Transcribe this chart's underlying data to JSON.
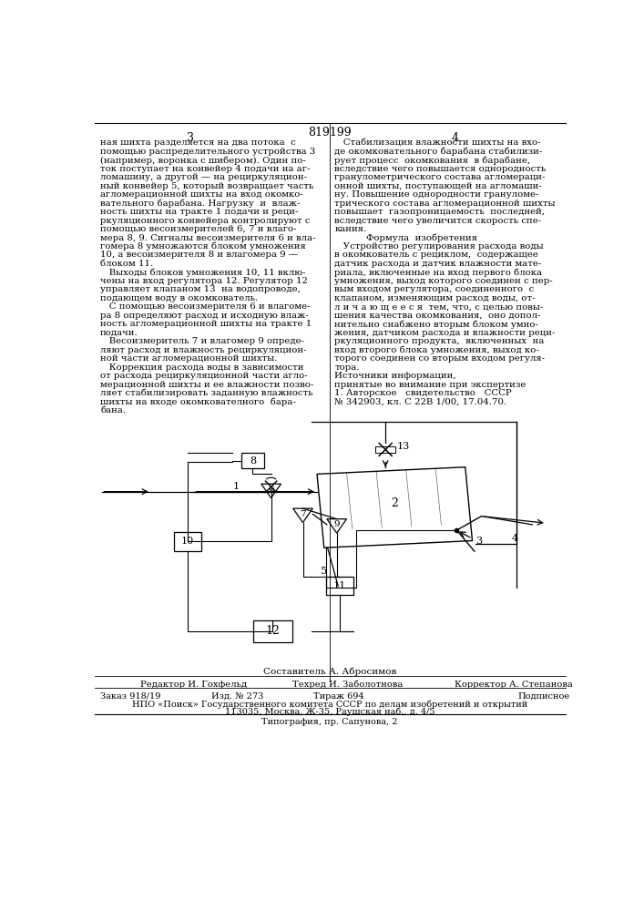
{
  "patent_number": "819199",
  "col1_text": [
    "ная шихта разделяется на два потока  с",
    "помощью распределительного устройства 3",
    "(например, воронка с шибером). Один по-",
    "ток поступает на конвейер 4 подачи на аг-",
    "ломашину, а другой — на рециркуляцион-",
    "ный конвейер 5, который возвращает часть",
    "агломерационной шихты на вход окомко-",
    "вательного барабана. Нагрузку  и  влаж-",
    "ность шихты на тракте 1 подачи и реци-",
    "ркуляционного конвейера контролируют с",
    "помощью весоизмерителей 6, 7 и влаго-",
    "мера 8, 9. Сигналы весоизмерителя 6 и вла-",
    "гомера 8 умножаются блоком умножения",
    "10, а весоизмерителя 8 и влагомера 9 —",
    "блоком 11.",
    "   Выходы блоков умножения 10, 11 вклю-",
    "чены на вход регулятора 12. Регулятор 12",
    "управляет клапаном 13  на водопроводе,",
    "подающем воду в окомкователь.",
    "   С помощью весоизмерителя 6 и влагоме-",
    "ра 8 определяют расход и исходную влаж-",
    "ность агломерационной шихты на тракте 1",
    "подачи.",
    "   Весоизмеритель 7 и влагомер 9 опреде-",
    "ляют расход и влажность рециркуляцион-",
    "ной части агломерационной шихты.",
    "   Коррекция расхода воды в зависимости",
    "от расхода рециркуляционной части агло-",
    "мерационной шихты и ее влажности позво-",
    "ляет стабилизировать заданную влажность",
    "шихты на входе окомкователного  бара-",
    "бана."
  ],
  "col2_text": [
    "   Стабилизация влажности шихты на вхо-",
    "де окомковательного барабана стабилизи-",
    "рует процесс  окомкования  в барабане,",
    "вследствие чего повышается однородность",
    "гранулометрического состава агломераци-",
    "онной шихты, поступающей на агломаши-",
    "ну. Повышение однородности грануломе-",
    "трического состава агломерационной шихты",
    "повышает  газопроницаемость  последней,",
    "вследствие чего увеличится скорость спе-",
    "кания.",
    "Формула  изобретения",
    "   Устройство регулирования расхода воды",
    "в окомкователь с рециклом,  содержащее",
    "датчик расхода и датчик влажности мате-",
    "риала, включенные на вход первого блока",
    "умножения, выход которого соединен с пер-",
    "вым входом регулятора, соединенного  с",
    "клапаном, изменяющим расход воды, от-",
    "л и ч а ю щ е е с я  тем, что, с целью повы-",
    "шения качества окомкования,  оно допол-",
    "нительно снабжено вторым блоком умно-",
    "жения, датчиком расхода и влажности реци-",
    "ркуляционного продукта,  включенных  на",
    "вход второго блока умножения, выход ко-",
    "торого соединен со вторым входом регуля-",
    "тора.",
    "Источники информации,",
    "принятые во внимание при экспертизе",
    "1. Авторское   свидетельство   СССР",
    "№ 342903, кл. С 22В 1/00, 17.04.70."
  ],
  "compiler_line": "Составитель А. Абросимов",
  "editor_line1": "Редактор И. Гохфельд",
  "editor_line2": "Техред И. Заболотнова",
  "editor_line3": "Корректор А. Степанова",
  "order_text": "Заказ 918/19",
  "izd_text": "Изд. № 273",
  "tirazh_text": "Тираж 694",
  "podpisnoe_text": "Подписное",
  "org_line": "НПО «Поиск» Государственного комитета СССР по делам изобретений и открытий",
  "address_line": "113035, Москва, Ж-35, Раушская наб., д. 4/5",
  "typography_line": "Типография, пр. Сапунова, 2",
  "bg_color": "#ffffff",
  "text_color": "#000000"
}
